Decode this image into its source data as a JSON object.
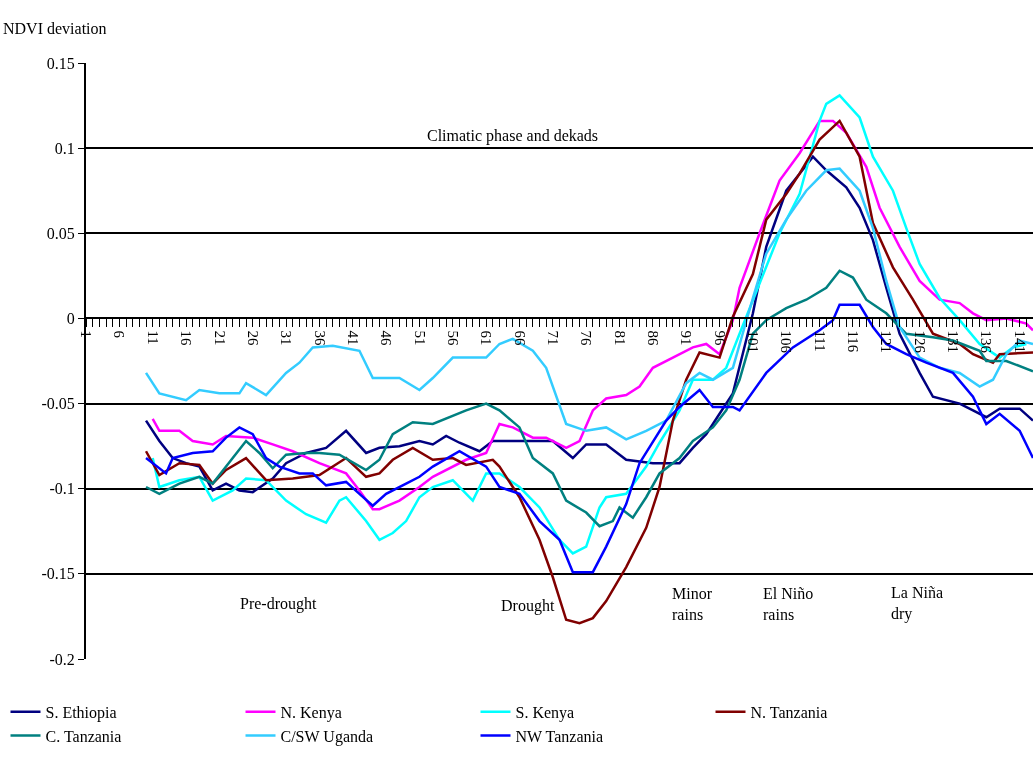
{
  "chart_data": {
    "type": "line",
    "ylabel": "NDVI deviation",
    "xlim": [
      1,
      143
    ],
    "xticks": [
      1,
      6,
      11,
      16,
      21,
      26,
      31,
      36,
      41,
      46,
      51,
      56,
      61,
      66,
      71,
      76,
      81,
      86,
      91,
      96,
      101,
      106,
      111,
      116,
      121,
      126,
      131,
      136,
      141
    ],
    "ylim": [
      -0.2,
      0.15
    ],
    "yticks": [
      -0.2,
      -0.15,
      -0.1,
      -0.05,
      0,
      0.05,
      0.1,
      0.15
    ],
    "grid": "y",
    "legend": "bottom",
    "marker": "none",
    "line_style": "solid",
    "annotations": [
      "Climatic phase and dekads",
      "Pre-drought",
      "Drought",
      "Minor\nrains",
      "El Niño\nrains",
      "La Niña\ndry"
    ],
    "series": [
      {
        "name": "S. Ethiopia",
        "color": "#000080",
        "x": [
          10,
          12,
          14,
          16,
          18,
          20,
          22,
          24,
          26,
          29,
          31,
          34,
          37,
          40,
          43,
          45,
          48,
          51,
          53,
          55,
          57,
          60,
          62,
          67,
          71,
          74,
          76,
          79,
          82,
          86,
          90,
          92,
          94,
          96,
          98,
          101,
          103,
          106,
          108,
          110,
          112,
          115,
          117,
          119,
          121,
          123,
          126,
          128,
          132,
          134,
          136,
          138,
          141,
          143
        ],
        "values": [
          -0.06,
          -0.072,
          -0.082,
          -0.085,
          -0.087,
          -0.101,
          -0.097,
          -0.101,
          -0.102,
          -0.094,
          -0.085,
          -0.079,
          -0.076,
          -0.066,
          -0.079,
          -0.076,
          -0.075,
          -0.072,
          -0.074,
          -0.069,
          -0.073,
          -0.078,
          -0.072,
          -0.072,
          -0.072,
          -0.082,
          -0.074,
          -0.074,
          -0.083,
          -0.085,
          -0.085,
          -0.076,
          -0.068,
          -0.056,
          -0.044,
          0.003,
          0.042,
          0.075,
          0.085,
          0.095,
          0.087,
          0.077,
          0.065,
          0.046,
          0.018,
          -0.009,
          -0.032,
          -0.046,
          -0.05,
          -0.054,
          -0.058,
          -0.053,
          -0.053,
          -0.06
        ]
      },
      {
        "name": "N. Kenya",
        "color": "#ff00ff",
        "x": [
          11,
          12,
          15,
          17,
          20,
          22,
          26,
          29,
          32,
          36,
          40,
          42,
          44,
          45,
          48,
          51,
          53,
          58,
          61,
          63,
          65,
          68,
          70,
          73,
          75,
          77,
          79,
          82,
          84,
          86,
          89,
          92,
          94,
          96,
          98,
          99,
          102,
          105,
          108,
          111,
          113,
          115,
          118,
          120,
          123,
          126,
          129,
          132,
          134,
          136,
          139,
          142,
          143
        ],
        "values": [
          -0.059,
          -0.066,
          -0.066,
          -0.072,
          -0.074,
          -0.069,
          -0.07,
          -0.074,
          -0.078,
          -0.085,
          -0.091,
          -0.101,
          -0.112,
          -0.112,
          -0.107,
          -0.099,
          -0.093,
          -0.083,
          -0.079,
          -0.062,
          -0.064,
          -0.07,
          -0.07,
          -0.076,
          -0.072,
          -0.054,
          -0.047,
          -0.045,
          -0.04,
          -0.029,
          -0.023,
          -0.017,
          -0.015,
          -0.021,
          -0.001,
          0.018,
          0.05,
          0.081,
          0.097,
          0.116,
          0.116,
          0.109,
          0.089,
          0.065,
          0.042,
          0.022,
          0.011,
          0.009,
          0.003,
          -0.001,
          0,
          -0.003,
          -0.007
        ]
      },
      {
        "name": "S. Kenya",
        "color": "#00ffff",
        "x": [
          11,
          12,
          15,
          18,
          20,
          23,
          25,
          28,
          31,
          34,
          37,
          39,
          40,
          43,
          45,
          47,
          49,
          51,
          53,
          56,
          59,
          61,
          63,
          66,
          69,
          72,
          74,
          76,
          78,
          79,
          82,
          85,
          87,
          90,
          92,
          95,
          97,
          99,
          105,
          108,
          111,
          112,
          114,
          117,
          119,
          122,
          124,
          126,
          129,
          132,
          135,
          138,
          140,
          142
        ],
        "values": [
          -0.082,
          -0.099,
          -0.095,
          -0.093,
          -0.107,
          -0.101,
          -0.094,
          -0.095,
          -0.107,
          -0.115,
          -0.12,
          -0.107,
          -0.105,
          -0.119,
          -0.13,
          -0.126,
          -0.119,
          -0.105,
          -0.099,
          -0.095,
          -0.107,
          -0.091,
          -0.091,
          -0.099,
          -0.111,
          -0.13,
          -0.138,
          -0.134,
          -0.111,
          -0.105,
          -0.103,
          -0.087,
          -0.073,
          -0.054,
          -0.036,
          -0.036,
          -0.029,
          -0.009,
          0.05,
          0.073,
          0.116,
          0.126,
          0.131,
          0.118,
          0.095,
          0.075,
          0.053,
          0.032,
          0.012,
          -0.001,
          -0.015,
          -0.023,
          -0.017,
          -0.015
        ]
      },
      {
        "name": "N. Tanzania",
        "color": "#800000",
        "x": [
          10,
          12,
          15,
          18,
          20,
          22,
          25,
          28,
          32,
          36,
          40,
          43,
          45,
          47,
          50,
          53,
          56,
          58,
          62,
          63,
          66,
          69,
          71,
          73,
          75,
          77,
          79,
          82,
          85,
          87,
          89,
          91,
          93,
          96,
          98,
          101,
          103,
          106,
          108,
          111,
          114,
          117,
          119,
          122,
          125,
          128,
          132,
          134,
          137,
          138,
          143
        ],
        "values": [
          -0.078,
          -0.092,
          -0.085,
          -0.086,
          -0.097,
          -0.089,
          -0.082,
          -0.095,
          -0.094,
          -0.092,
          -0.082,
          -0.093,
          -0.091,
          -0.083,
          -0.076,
          -0.083,
          -0.082,
          -0.086,
          -0.083,
          -0.087,
          -0.105,
          -0.13,
          -0.152,
          -0.177,
          -0.179,
          -0.176,
          -0.166,
          -0.146,
          -0.123,
          -0.099,
          -0.06,
          -0.036,
          -0.02,
          -0.023,
          0.001,
          0.026,
          0.058,
          0.073,
          0.085,
          0.105,
          0.116,
          0.095,
          0.056,
          0.03,
          0.011,
          -0.009,
          -0.015,
          -0.021,
          -0.026,
          -0.021,
          -0.02
        ]
      },
      {
        "name": "C. Tanzania",
        "color": "#008080",
        "x": [
          10,
          12,
          15,
          18,
          20,
          23,
          25,
          27,
          29,
          31,
          34,
          36,
          39,
          43,
          45,
          47,
          50,
          53,
          58,
          61,
          63,
          66,
          68,
          71,
          73,
          76,
          78,
          80,
          81,
          83,
          85,
          87,
          90,
          92,
          95,
          97,
          99,
          101,
          103,
          106,
          109,
          112,
          114,
          116,
          118,
          121,
          124,
          128,
          131,
          135,
          136,
          139,
          143
        ],
        "values": [
          -0.099,
          -0.103,
          -0.097,
          -0.093,
          -0.097,
          -0.082,
          -0.072,
          -0.079,
          -0.088,
          -0.08,
          -0.079,
          -0.079,
          -0.08,
          -0.089,
          -0.083,
          -0.068,
          -0.061,
          -0.062,
          -0.054,
          -0.05,
          -0.054,
          -0.064,
          -0.082,
          -0.091,
          -0.107,
          -0.114,
          -0.122,
          -0.119,
          -0.111,
          -0.117,
          -0.105,
          -0.091,
          -0.082,
          -0.072,
          -0.064,
          -0.054,
          -0.036,
          -0.009,
          -0.001,
          0.006,
          0.011,
          0.018,
          0.028,
          0.024,
          0.011,
          0.003,
          -0.009,
          -0.011,
          -0.013,
          -0.019,
          -0.025,
          -0.025,
          -0.031
        ]
      },
      {
        "name": "C/SW Uganda",
        "color": "#33ccff",
        "x": [
          10,
          12,
          16,
          18,
          21,
          24,
          25,
          28,
          31,
          33,
          35,
          38,
          42,
          44,
          48,
          51,
          53,
          56,
          61,
          63,
          65,
          68,
          70,
          73,
          76,
          79,
          82,
          85,
          88,
          91,
          93,
          95,
          98,
          101,
          103,
          106,
          109,
          112,
          114,
          117,
          119,
          121,
          123,
          126,
          129,
          132,
          135,
          137,
          139,
          141,
          143
        ],
        "values": [
          -0.032,
          -0.044,
          -0.048,
          -0.042,
          -0.044,
          -0.044,
          -0.038,
          -0.045,
          -0.032,
          -0.026,
          -0.017,
          -0.016,
          -0.019,
          -0.035,
          -0.035,
          -0.042,
          -0.035,
          -0.023,
          -0.023,
          -0.015,
          -0.012,
          -0.019,
          -0.029,
          -0.062,
          -0.066,
          -0.064,
          -0.071,
          -0.066,
          -0.06,
          -0.038,
          -0.032,
          -0.036,
          -0.029,
          0.012,
          0.038,
          0.058,
          0.075,
          0.087,
          0.088,
          0.075,
          0.053,
          0.022,
          -0.005,
          -0.023,
          -0.029,
          -0.032,
          -0.04,
          -0.036,
          -0.021,
          -0.013,
          -0.015
        ]
      },
      {
        "name": "NW Tanzania",
        "color": "#0000ff",
        "x": [
          10,
          13,
          14,
          17,
          20,
          22,
          24,
          26,
          28,
          30,
          33,
          35,
          37,
          40,
          42,
          44,
          46,
          49,
          51,
          53,
          57,
          61,
          63,
          66,
          69,
          72,
          74,
          77,
          79,
          82,
          84,
          88,
          90,
          93,
          95,
          98,
          99,
          103,
          107,
          111,
          113,
          114,
          117,
          119,
          121,
          124,
          127,
          131,
          134,
          136,
          138,
          141,
          143
        ],
        "values": [
          -0.082,
          -0.091,
          -0.082,
          -0.079,
          -0.078,
          -0.07,
          -0.064,
          -0.068,
          -0.082,
          -0.087,
          -0.091,
          -0.091,
          -0.098,
          -0.096,
          -0.103,
          -0.11,
          -0.103,
          -0.097,
          -0.093,
          -0.087,
          -0.078,
          -0.087,
          -0.099,
          -0.103,
          -0.119,
          -0.13,
          -0.149,
          -0.149,
          -0.134,
          -0.109,
          -0.085,
          -0.06,
          -0.052,
          -0.042,
          -0.052,
          -0.052,
          -0.054,
          -0.032,
          -0.017,
          -0.007,
          -0.001,
          0.008,
          0.008,
          -0.005,
          -0.015,
          -0.021,
          -0.026,
          -0.032,
          -0.046,
          -0.062,
          -0.056,
          -0.066,
          -0.082
        ]
      }
    ]
  }
}
